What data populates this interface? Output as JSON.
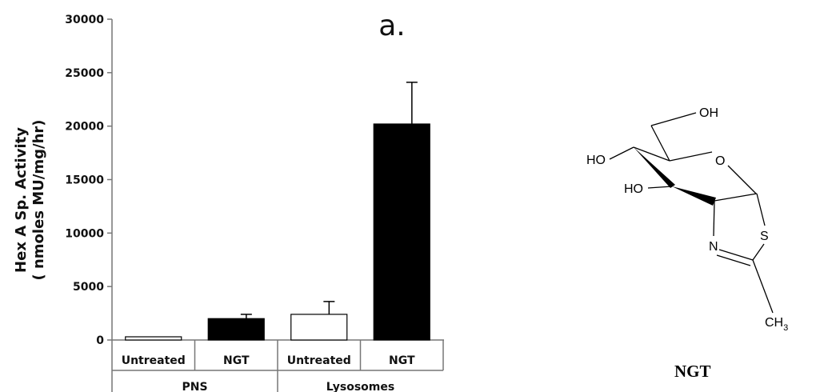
{
  "chart_data": {
    "type": "bar",
    "panel_label": "a.",
    "ylabel_line1": "Hex A Sp. Activity",
    "ylabel_line2": "( nmoles MU/mg/hr)",
    "ylim": [
      0,
      30000
    ],
    "yticks": [
      "0",
      "5000",
      "10000",
      "15000",
      "20000",
      "25000",
      "30000"
    ],
    "groups": [
      "PNS",
      "Lysosomes"
    ],
    "categories": [
      "Untreated",
      "NGT",
      "Untreated",
      "NGT"
    ],
    "values": [
      300,
      2000,
      2400,
      20200
    ],
    "errors": [
      0,
      400,
      1200,
      3900
    ],
    "bar_fills": [
      "#ffffff",
      "#000000",
      "#ffffff",
      "#000000"
    ],
    "grid": false,
    "legend": "none"
  },
  "molecule": {
    "caption": "NGT",
    "labels": {
      "oh_top": "OH",
      "oh_left": "HO",
      "oh_mid": "HO",
      "ring_o": "O",
      "ring_s": "S",
      "ring_n": "N",
      "methyl": "CH",
      "methyl_sub": "3"
    }
  }
}
